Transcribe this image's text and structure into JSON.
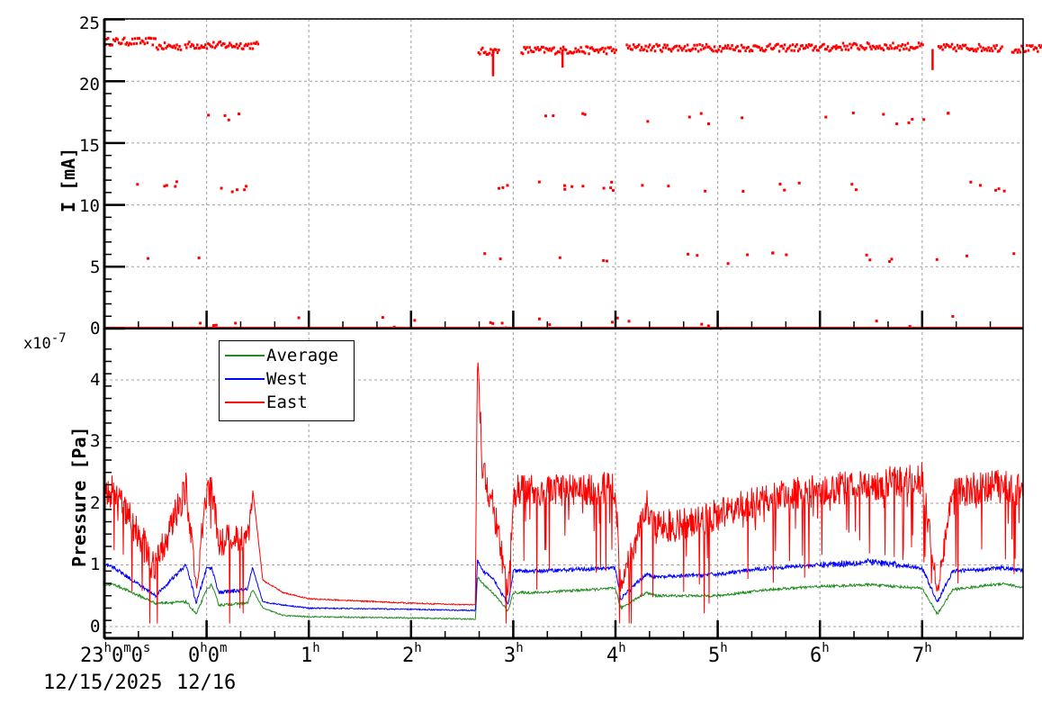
{
  "chart_data": [
    {
      "type": "scatter",
      "panel": "top",
      "ylabel": "I [mA]",
      "ylim": [
        0,
        25
      ],
      "yticks": [
        0,
        5,
        10,
        15,
        20,
        25
      ],
      "grid": true,
      "color": "#ff0000",
      "x_unit": "hours after 23:00 12/15/2025",
      "main_band": [
        {
          "x_start": 0.0,
          "x_end": 0.5,
          "y": 23.2
        },
        {
          "x_start": 0.5,
          "x_end": 0.75,
          "y": 22.8
        },
        {
          "x_start": 0.78,
          "x_end": 1.5,
          "y": 22.9
        },
        {
          "x_start": 3.65,
          "x_end": 3.85,
          "y": 22.4
        },
        {
          "x_start": 4.07,
          "x_end": 5.0,
          "y": 22.5
        },
        {
          "x_start": 5.1,
          "x_end": 7.15,
          "y": 22.7
        },
        {
          "x_start": 7.15,
          "x_end": 8.0,
          "y": 22.8
        },
        {
          "x_start": 8.15,
          "x_end": 8.78,
          "y": 22.7
        },
        {
          "x_start": 8.87,
          "x_end": 9.9,
          "y": 22.6
        }
      ],
      "dropouts": [
        {
          "x": 3.8,
          "y_min": 20.4
        },
        {
          "x": 4.48,
          "y_min": 21.1
        },
        {
          "x": 8.1,
          "y_min": 20.9
        }
      ],
      "scatter_levels_mA": [
        17,
        11.5,
        5.7,
        0
      ],
      "note": "Sparse points cluster near 17, 11.5 and 5.7 mA; continuous band at 0 mA across the whole time range"
    },
    {
      "type": "line",
      "panel": "bottom",
      "ylabel": "Pressure [Pa]",
      "y_multiplier": "x10^-7",
      "ylim": [
        -0.2,
        4.6
      ],
      "yticks": [
        0,
        1,
        2,
        3,
        4
      ],
      "grid": true,
      "legend_position": "upper-left",
      "x": [
        0.0,
        0.1,
        0.5,
        0.8,
        0.9,
        1.0,
        1.05,
        1.12,
        1.4,
        1.45,
        1.55,
        1.75,
        2.0,
        3.0,
        3.63,
        3.65,
        3.7,
        3.8,
        3.95,
        4.0,
        4.2,
        5.0,
        5.05,
        5.3,
        5.4,
        6.0,
        6.5,
        7.0,
        7.5,
        8.0,
        8.15,
        8.3,
        8.8,
        9.0,
        9.3,
        9.6,
        9.98
      ],
      "series": [
        {
          "name": "Average",
          "color": "#228b22",
          "values": [
            0.68,
            0.68,
            0.38,
            0.4,
            0.2,
            0.6,
            0.68,
            0.35,
            0.38,
            0.6,
            0.3,
            0.18,
            0.16,
            0.14,
            0.12,
            0.8,
            0.7,
            0.55,
            0.25,
            0.55,
            0.55,
            0.62,
            0.3,
            0.55,
            0.5,
            0.5,
            0.6,
            0.65,
            0.68,
            0.62,
            0.2,
            0.6,
            0.7,
            0.62,
            0.65,
            0.6,
            0.2
          ]
        },
        {
          "name": "West",
          "color": "#0000ff",
          "values": [
            1.0,
            0.95,
            0.5,
            1.0,
            0.38,
            0.95,
            0.95,
            0.55,
            0.6,
            0.95,
            0.4,
            0.35,
            0.3,
            0.28,
            0.26,
            1.05,
            0.9,
            0.8,
            0.35,
            0.9,
            0.9,
            0.95,
            0.45,
            0.85,
            0.8,
            0.85,
            0.95,
            1.0,
            1.05,
            0.95,
            0.4,
            0.9,
            0.95,
            0.9,
            0.85,
            0.8,
            0.35
          ]
        },
        {
          "name": "East",
          "color": "#ff0000",
          "values": [
            2.2,
            2.2,
            1.0,
            2.25,
            0.6,
            2.2,
            2.2,
            1.4,
            1.4,
            2.25,
            0.75,
            0.55,
            0.45,
            0.38,
            0.35,
            4.5,
            2.5,
            2.0,
            0.55,
            2.2,
            2.2,
            2.25,
            0.6,
            2.0,
            1.6,
            1.8,
            2.1,
            2.2,
            2.3,
            2.4,
            0.6,
            2.2,
            2.3,
            2.2,
            1.6,
            1.5,
            0.6
          ]
        }
      ]
    }
  ],
  "axes": {
    "top": {
      "ylabel": "I [mA]",
      "ticks": [
        {
          "label": "25",
          "value": 25
        },
        {
          "label": "20",
          "value": 20
        },
        {
          "label": "15",
          "value": 15
        },
        {
          "label": "10",
          "value": 10
        },
        {
          "label": "5",
          "value": 5
        },
        {
          "label": "0",
          "value": 0
        }
      ]
    },
    "bottom": {
      "ylabel": "Pressure [Pa]",
      "multiplier_base": "x10",
      "multiplier_exp": "-7",
      "ticks": [
        {
          "label": "4",
          "value": 4
        },
        {
          "label": "3",
          "value": 3
        },
        {
          "label": "2",
          "value": 2
        },
        {
          "label": "1",
          "value": 1
        },
        {
          "label": "0",
          "value": 0
        }
      ]
    },
    "x": {
      "ticks": [
        {
          "main": "23",
          "sup1": "h",
          "mid1": "0",
          "sup2": "m",
          "mid2": "0",
          "sup3": "s",
          "hour": 0
        },
        {
          "main": "0",
          "sup1": "h",
          "mid1": "0",
          "sup2": "m",
          "mid2": "",
          "sup3": "",
          "hour": 1
        },
        {
          "main": "1",
          "sup1": "h",
          "hour": 2
        },
        {
          "main": "2",
          "sup1": "h",
          "hour": 3
        },
        {
          "main": "3",
          "sup1": "h",
          "hour": 4
        },
        {
          "main": "4",
          "sup1": "h",
          "hour": 5
        },
        {
          "main": "5",
          "sup1": "h",
          "hour": 6
        },
        {
          "main": "6",
          "sup1": "h",
          "hour": 7
        },
        {
          "main": "7",
          "sup1": "h",
          "hour": 8
        }
      ],
      "date_start": "12/15/2025",
      "date_next": "12/16"
    }
  },
  "legend": {
    "items": [
      {
        "label": "Average",
        "color": "#228b22"
      },
      {
        "label": "West",
        "color": "#0000ff"
      },
      {
        "label": "East",
        "color": "#ff0000"
      }
    ]
  }
}
